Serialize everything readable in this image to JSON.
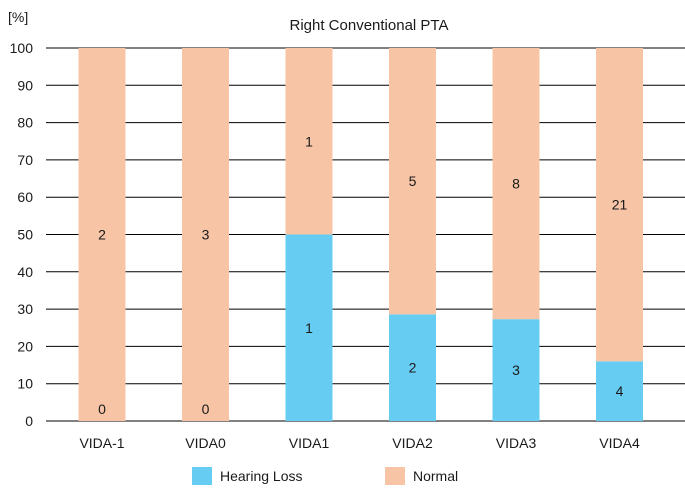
{
  "chart_data": {
    "type": "bar",
    "stacked": true,
    "title": "Right Conventional PTA",
    "ylabel": "[%]",
    "xlabel": "",
    "ylim": [
      0,
      100
    ],
    "yticks": [
      0,
      10,
      20,
      30,
      40,
      50,
      60,
      70,
      80,
      90,
      100
    ],
    "grid": "horizontal",
    "legend_position": "bottom",
    "categories": [
      "VIDA-1",
      "VIDA0",
      "VIDA1",
      "VIDA2",
      "VIDA3",
      "VIDA4"
    ],
    "series": [
      {
        "name": "Hearing Loss",
        "color": "#66ccf2",
        "percent": [
          0,
          0,
          50,
          28.6,
          27.3,
          16.0
        ],
        "counts": [
          "0",
          "0",
          "1",
          "2",
          "3",
          "4"
        ]
      },
      {
        "name": "Normal",
        "color": "#f7c4a6",
        "percent": [
          100,
          100,
          50,
          71.4,
          72.7,
          84.0
        ],
        "counts": [
          "2",
          "3",
          "1",
          "5",
          "8",
          "21"
        ]
      }
    ]
  }
}
